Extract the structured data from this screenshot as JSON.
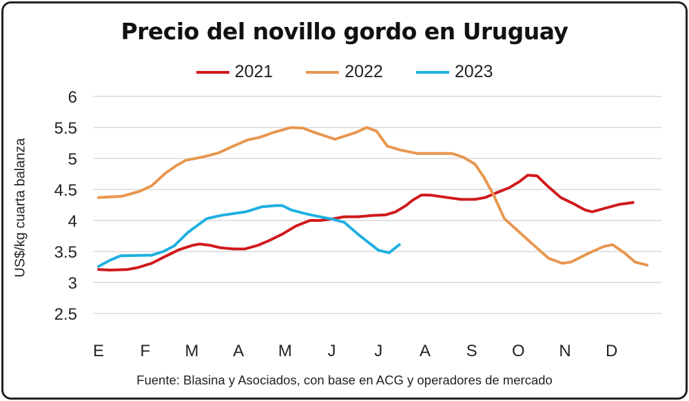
{
  "chart_data": {
    "type": "line",
    "title": "Precio del novillo gordo en Uruguay",
    "ylabel": "US$/kg cuarta balanza",
    "xlabel": "",
    "ylim": [
      2,
      6
    ],
    "yticks": [
      "2.5",
      "3",
      "3.5",
      "4",
      "4.5",
      "5",
      "5.5",
      "6"
    ],
    "ytick_values": [
      2.5,
      3,
      3.5,
      4,
      4.5,
      5,
      5.5,
      6
    ],
    "x_categories": [
      "E",
      "F",
      "M",
      "A",
      "M",
      "J",
      "J",
      "A",
      "S",
      "O",
      "N",
      "D"
    ],
    "x_unit": "month (1 = E)",
    "grid": "horizontal",
    "legend": "top",
    "source": "Fuente: Blasina y Asociados, con base en ACG y operadores de mercado",
    "series": [
      {
        "name": "2021",
        "color": "#d0191c",
        "x": [
          1.0,
          1.25,
          1.62,
          1.84,
          2.14,
          2.43,
          2.73,
          3.02,
          3.17,
          3.39,
          3.61,
          3.91,
          4.13,
          4.42,
          4.64,
          4.94,
          5.23,
          5.53,
          5.75,
          5.97,
          6.27,
          6.56,
          6.86,
          7.15,
          7.37,
          7.59,
          7.74,
          7.92,
          8.11,
          8.48,
          8.77,
          9.07,
          9.29,
          9.51,
          9.81,
          10.03,
          10.2,
          10.4,
          10.62,
          10.91,
          11.21,
          11.43,
          11.58,
          11.87,
          12.17,
          12.46
        ],
        "y": [
          3.21,
          3.2,
          3.21,
          3.24,
          3.31,
          3.42,
          3.53,
          3.6,
          3.62,
          3.6,
          3.56,
          3.54,
          3.54,
          3.6,
          3.67,
          3.78,
          3.91,
          4.0,
          4.0,
          4.02,
          4.06,
          4.06,
          4.08,
          4.09,
          4.14,
          4.24,
          4.33,
          4.41,
          4.41,
          4.37,
          4.34,
          4.34,
          4.37,
          4.44,
          4.53,
          4.63,
          4.73,
          4.72,
          4.56,
          4.37,
          4.26,
          4.17,
          4.14,
          4.2,
          4.26,
          4.29
        ]
      },
      {
        "name": "2022",
        "color": "#e8964f",
        "x": [
          1.0,
          1.5,
          1.88,
          2.14,
          2.43,
          2.68,
          2.87,
          3.27,
          3.57,
          3.86,
          4.2,
          4.45,
          4.75,
          5.13,
          5.38,
          5.63,
          5.87,
          6.07,
          6.27,
          6.52,
          6.75,
          6.96,
          7.19,
          7.45,
          7.84,
          8.58,
          8.82,
          9.07,
          9.26,
          9.47,
          9.7,
          9.95,
          10.29,
          10.65,
          10.94,
          11.13,
          11.53,
          11.83,
          12.02,
          12.27,
          12.5,
          12.76
        ],
        "y": [
          4.37,
          4.39,
          4.47,
          4.56,
          4.76,
          4.89,
          4.97,
          5.03,
          5.09,
          5.19,
          5.3,
          5.34,
          5.42,
          5.5,
          5.49,
          5.42,
          5.36,
          5.31,
          5.36,
          5.42,
          5.5,
          5.44,
          5.2,
          5.14,
          5.08,
          5.08,
          5.02,
          4.91,
          4.7,
          4.41,
          4.03,
          3.86,
          3.63,
          3.39,
          3.31,
          3.33,
          3.48,
          3.58,
          3.61,
          3.48,
          3.33,
          3.28
        ]
      },
      {
        "name": "2023",
        "color": "#1fb0e0",
        "x": [
          1.0,
          1.25,
          1.47,
          2.14,
          2.39,
          2.62,
          2.92,
          3.32,
          3.61,
          4.16,
          4.5,
          4.79,
          4.94,
          5.13,
          5.43,
          5.68,
          6.02,
          6.27,
          6.56,
          7.0,
          7.23,
          7.45
        ],
        "y": [
          3.26,
          3.36,
          3.43,
          3.44,
          3.5,
          3.59,
          3.81,
          4.03,
          4.08,
          4.14,
          4.22,
          4.24,
          4.24,
          4.17,
          4.11,
          4.07,
          4.02,
          3.97,
          3.78,
          3.52,
          3.48,
          3.61
        ]
      }
    ]
  }
}
